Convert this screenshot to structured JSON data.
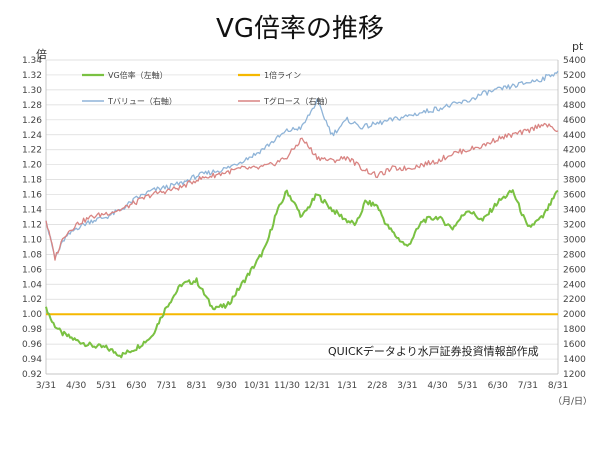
{
  "title": "VG倍率の推移",
  "left_unit": "倍",
  "right_unit": "pt",
  "x_unit": "（月/日）",
  "source_note": "QUICKデータより水戸証券投資情報部作成",
  "colors": {
    "vg_ratio": "#7ac142",
    "one_line": "#f5b800",
    "value": "#8fb4d8",
    "growth": "#d98482",
    "grid": "#d9d9d9"
  },
  "chart_data": {
    "type": "line",
    "title": "VG倍率の推移",
    "x_ticks": [
      "3/31",
      "4/30",
      "5/31",
      "6/30",
      "7/31",
      "8/31",
      "9/30",
      "10/31",
      "11/30",
      "12/31",
      "1/31",
      "2/28",
      "3/31",
      "4/30",
      "5/31",
      "6/30",
      "7/31",
      "8/31"
    ],
    "y_left": {
      "label": "倍",
      "min": 0.92,
      "max": 1.34,
      "step": 0.02
    },
    "y_right": {
      "label": "pt",
      "min": 1200,
      "max": 5400,
      "step": 200
    },
    "legend": [
      "VG倍率（左軸）",
      "1倍ライン",
      "Tバリュー（右軸）",
      "Tグロース（右軸）"
    ],
    "series": [
      {
        "name": "VG倍率（左軸）",
        "axis": "left",
        "color": "#7ac142",
        "x": [
          0,
          0.2,
          0.5,
          1,
          1.5,
          2,
          2.5,
          3,
          3.5,
          4,
          4.5,
          5,
          5.5,
          6,
          6.5,
          7,
          7.3,
          7.6,
          8,
          8.5,
          9,
          9.5,
          10,
          10.3,
          10.6,
          11,
          11.3,
          11.6,
          12,
          12.5,
          13,
          13.5,
          14,
          14.5,
          15,
          15.5,
          16,
          16.5,
          17
        ],
        "values": [
          1.01,
          0.99,
          0.975,
          0.965,
          0.958,
          0.955,
          0.945,
          0.955,
          0.97,
          1.01,
          1.04,
          1.045,
          1.01,
          1.01,
          1.04,
          1.07,
          1.09,
          1.13,
          1.165,
          1.13,
          1.16,
          1.14,
          1.125,
          1.12,
          1.15,
          1.145,
          1.12,
          1.105,
          1.09,
          1.125,
          1.13,
          1.115,
          1.14,
          1.125,
          1.15,
          1.165,
          1.115,
          1.13,
          1.165
        ]
      },
      {
        "name": "1倍ライン",
        "axis": "left",
        "color": "#f5b800",
        "x": [
          0,
          17
        ],
        "values": [
          1.0,
          1.0
        ]
      },
      {
        "name": "Tバリュー（右軸）",
        "axis": "right",
        "color": "#8fb4d8",
        "x": [
          0,
          0.3,
          0.6,
          1,
          1.5,
          2,
          2.5,
          3,
          3.5,
          4,
          4.5,
          5,
          5.5,
          6,
          6.5,
          7,
          7.5,
          8,
          8.5,
          9,
          9.5,
          10,
          10.5,
          11,
          11.5,
          12,
          12.5,
          13,
          13.5,
          14,
          14.5,
          15,
          15.5,
          16,
          16.5,
          17
        ],
        "values": [
          3250,
          2750,
          3000,
          3150,
          3250,
          3300,
          3400,
          3550,
          3650,
          3700,
          3750,
          3850,
          3900,
          3950,
          4050,
          4150,
          4300,
          4450,
          4500,
          4850,
          4400,
          4600,
          4500,
          4550,
          4600,
          4650,
          4700,
          4750,
          4800,
          4850,
          4950,
          5000,
          5050,
          5100,
          5150,
          5250
        ]
      },
      {
        "name": "Tグロース（右軸）",
        "axis": "right",
        "color": "#d98482",
        "x": [
          0,
          0.3,
          0.6,
          1,
          1.5,
          2,
          2.5,
          3,
          3.5,
          4,
          4.5,
          5,
          5.5,
          6,
          6.5,
          7,
          7.5,
          8,
          8.5,
          9,
          9.5,
          10,
          10.5,
          11,
          11.5,
          12,
          12.5,
          13,
          13.5,
          14,
          14.5,
          15,
          15.5,
          16,
          16.5,
          17
        ],
        "values": [
          3250,
          2750,
          3050,
          3200,
          3300,
          3350,
          3400,
          3500,
          3600,
          3650,
          3700,
          3800,
          3850,
          3900,
          3950,
          3950,
          4000,
          4100,
          4350,
          4100,
          4050,
          4100,
          3950,
          3850,
          3950,
          3950,
          4000,
          4050,
          4150,
          4200,
          4250,
          4350,
          4400,
          4450,
          4550,
          4450
        ]
      }
    ],
    "grid": true,
    "legend_position": "top-left"
  }
}
